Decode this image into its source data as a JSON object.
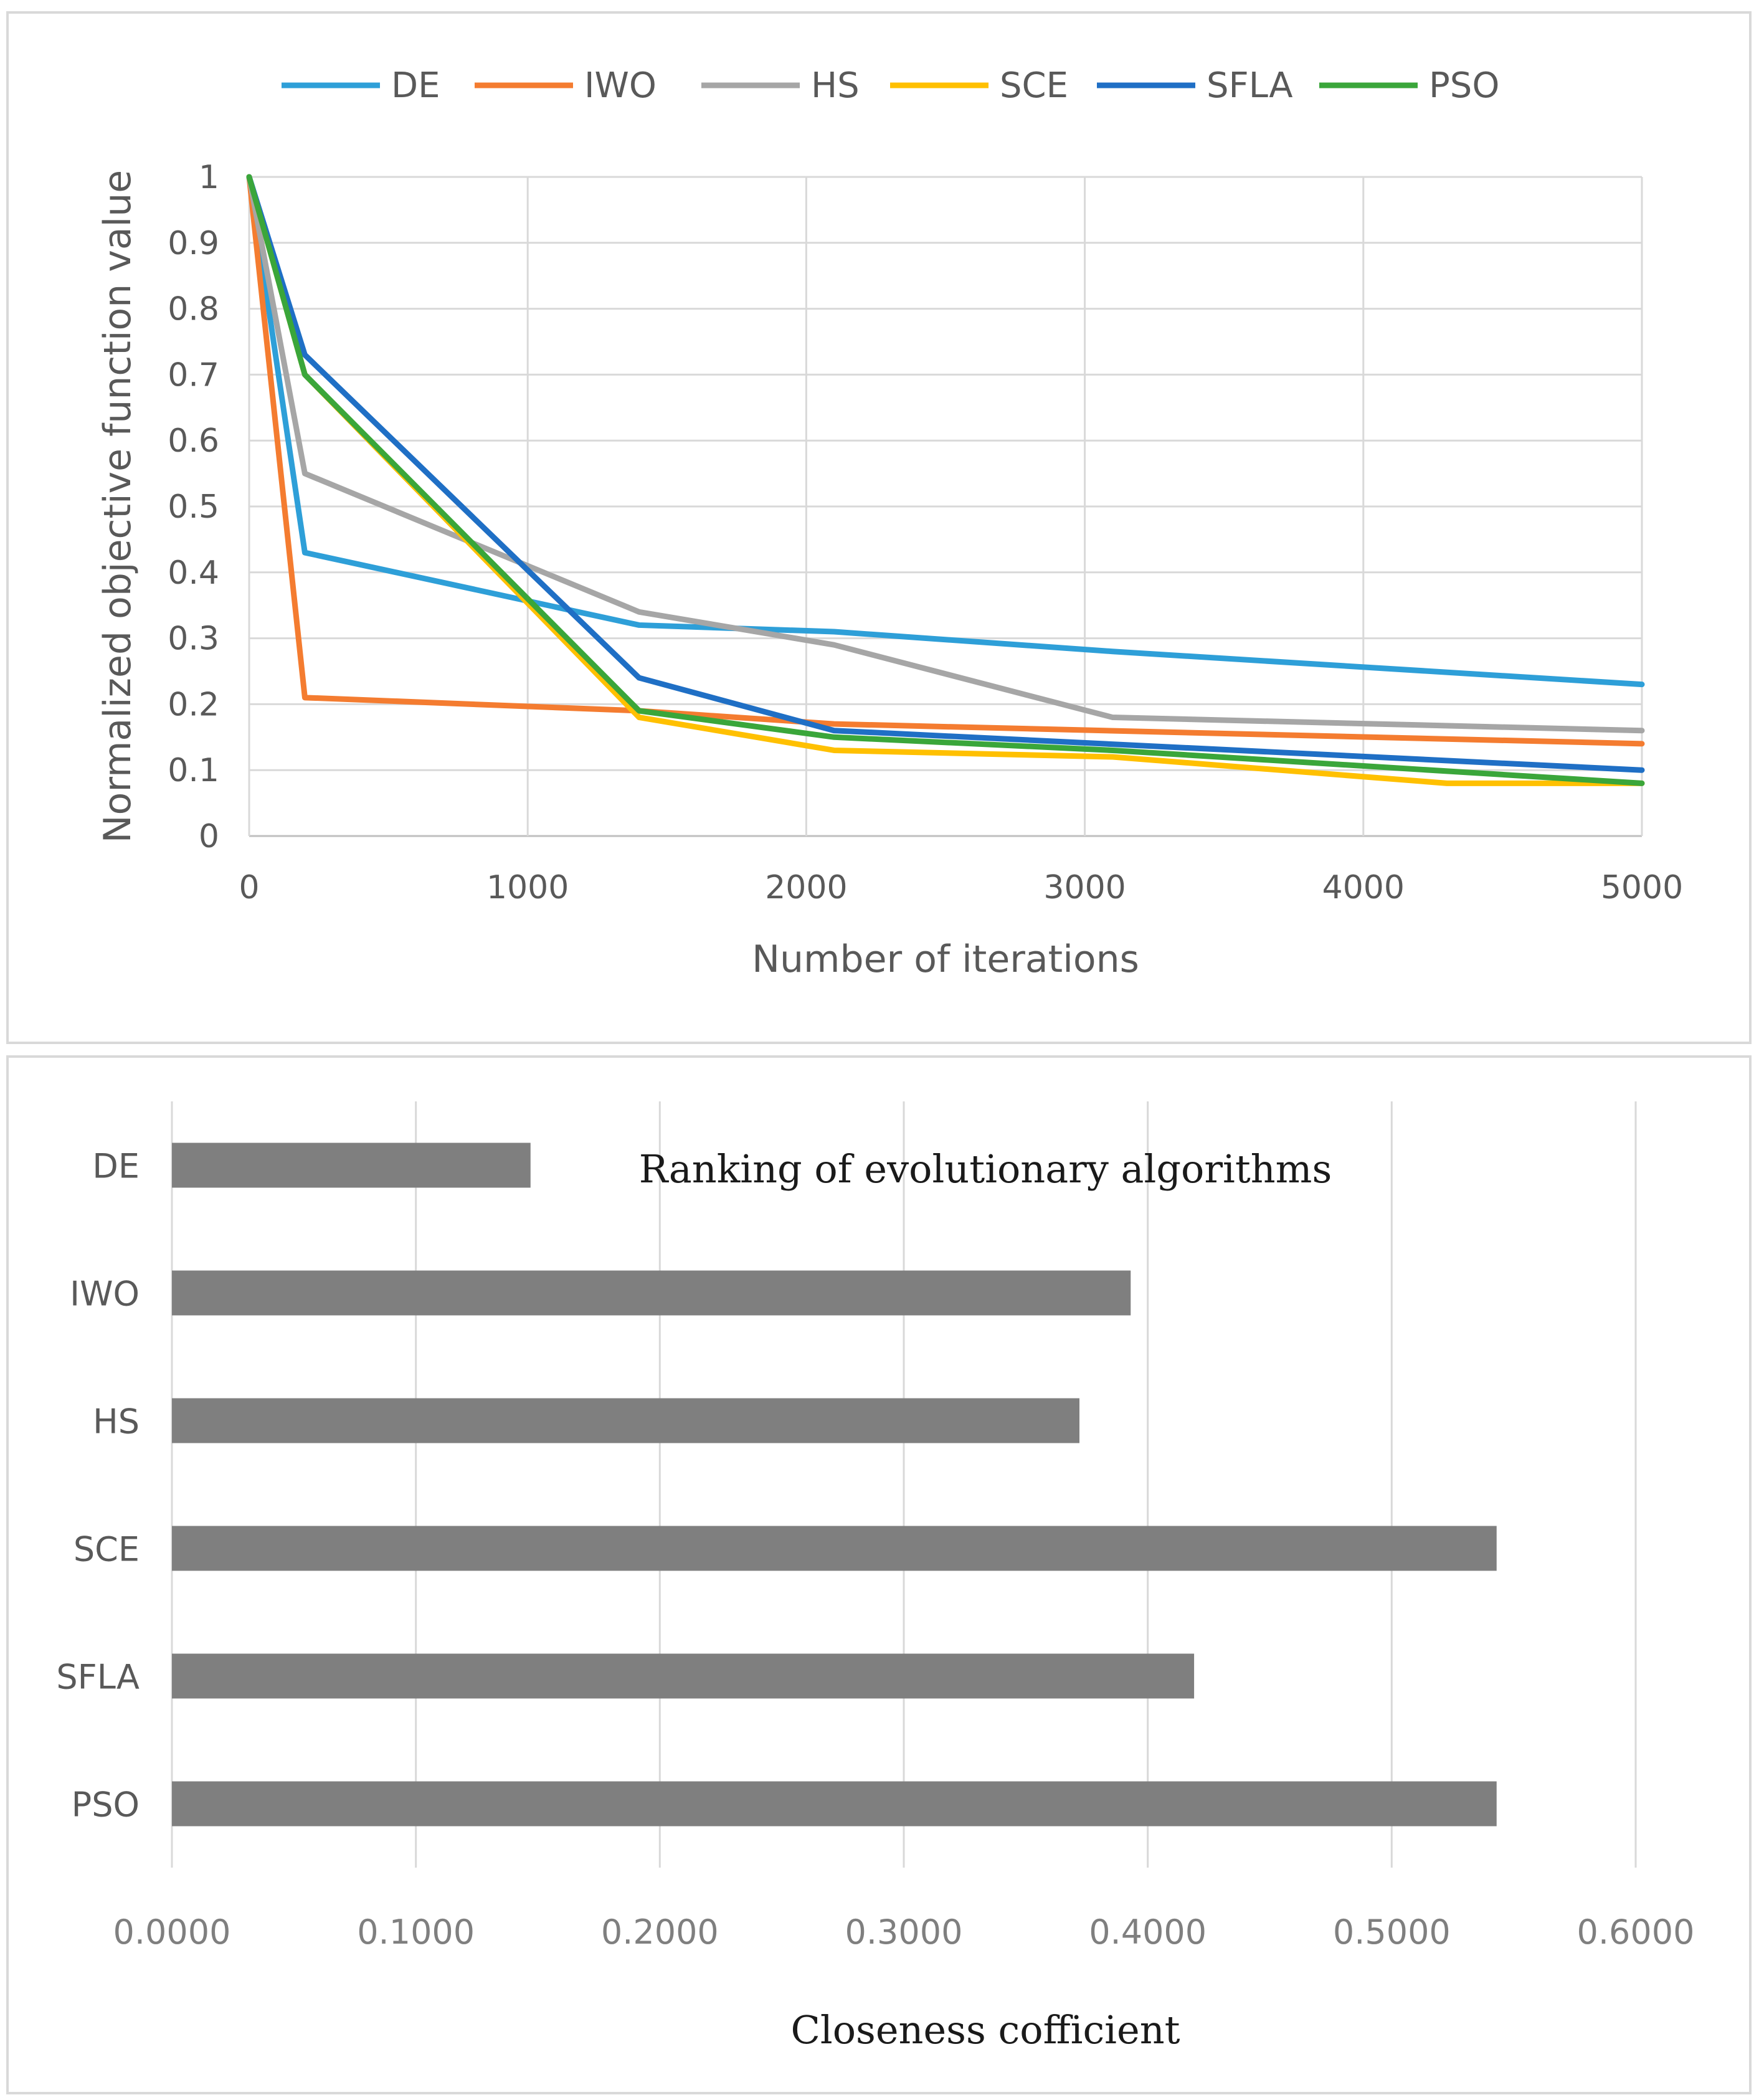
{
  "chart_data": [
    {
      "type": "line",
      "title": "",
      "xlabel": "Number of iterations",
      "ylabel": "Normalized objective function value",
      "xlim": [
        0,
        5000
      ],
      "ylim": [
        0,
        1
      ],
      "xticks": [
        "0",
        "1000",
        "2000",
        "3000",
        "4000",
        "5000"
      ],
      "yticks": [
        "0",
        "0.1",
        "0.2",
        "0.3",
        "0.4",
        "0.5",
        "0.6",
        "0.7",
        "0.8",
        "0.9",
        "1"
      ],
      "grid": true,
      "legend_position": "top",
      "series": [
        {
          "name": "DE",
          "color": "#2e9fd8",
          "points": [
            [
              0,
              1.0
            ],
            [
              200,
              0.43
            ],
            [
              1400,
              0.32
            ],
            [
              2100,
              0.31
            ],
            [
              3100,
              0.28
            ],
            [
              5000,
              0.23
            ]
          ]
        },
        {
          "name": "IWO",
          "color": "#f47c30",
          "points": [
            [
              0,
              1.0
            ],
            [
              200,
              0.21
            ],
            [
              1400,
              0.19
            ],
            [
              2100,
              0.17
            ],
            [
              5000,
              0.14
            ]
          ]
        },
        {
          "name": "HS",
          "color": "#a6a6a6",
          "points": [
            [
              0,
              1.0
            ],
            [
              200,
              0.55
            ],
            [
              1400,
              0.34
            ],
            [
              2100,
              0.29
            ],
            [
              3100,
              0.18
            ],
            [
              5000,
              0.16
            ]
          ]
        },
        {
          "name": "SCE",
          "color": "#ffc000",
          "points": [
            [
              0,
              1.0
            ],
            [
              200,
              0.7
            ],
            [
              1400,
              0.18
            ],
            [
              2100,
              0.13
            ],
            [
              3100,
              0.12
            ],
            [
              4300,
              0.08
            ],
            [
              5000,
              0.08
            ]
          ]
        },
        {
          "name": "SFLA",
          "color": "#1f6fc5",
          "points": [
            [
              0,
              1.0
            ],
            [
              200,
              0.73
            ],
            [
              1400,
              0.24
            ],
            [
              2100,
              0.16
            ],
            [
              5000,
              0.1
            ]
          ]
        },
        {
          "name": "PSO",
          "color": "#3aa63a",
          "points": [
            [
              0,
              1.0
            ],
            [
              200,
              0.7
            ],
            [
              1400,
              0.19
            ],
            [
              2100,
              0.15
            ],
            [
              3100,
              0.13
            ],
            [
              5000,
              0.08
            ]
          ]
        }
      ]
    },
    {
      "type": "bar",
      "orientation": "horizontal",
      "title": "Ranking of evolutionary algorithms",
      "xlabel": "Closeness cofficient",
      "ylabel": "",
      "xlim": [
        0,
        0.6
      ],
      "xticks": [
        "0.0000",
        "0.1000",
        "0.2000",
        "0.3000",
        "0.4000",
        "0.5000",
        "0.6000"
      ],
      "grid": true,
      "bar_color": "#7f7f7f",
      "categories": [
        "DE",
        "IWO",
        "HS",
        "SCE",
        "SFLA",
        "PSO"
      ],
      "values": [
        0.147,
        0.393,
        0.372,
        0.543,
        0.419,
        0.543
      ]
    }
  ]
}
